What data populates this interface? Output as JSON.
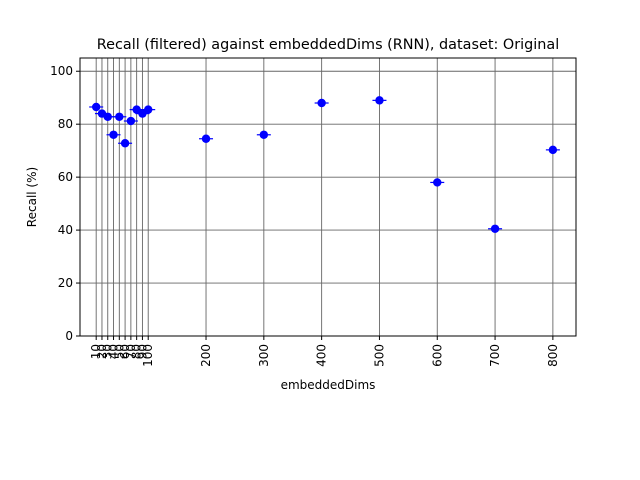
{
  "chart_data": {
    "type": "scatter",
    "title": "Recall (filtered) against embeddedDims (RNN), dataset: Original",
    "xlabel": "embeddedDims",
    "ylabel": "Recall (%)",
    "grid": true,
    "ylim": [
      0,
      105
    ],
    "xlim": [
      -18,
      840
    ],
    "x_ticks": [
      10,
      20,
      30,
      40,
      50,
      60,
      70,
      80,
      90,
      100,
      200,
      300,
      400,
      500,
      600,
      700,
      800
    ],
    "x_tick_labels": [
      "10",
      "20",
      "30",
      "40",
      "50",
      "60",
      "70",
      "80",
      "90",
      "100",
      "200",
      "300",
      "400",
      "500",
      "600",
      "700",
      "800"
    ],
    "y_ticks": [
      0,
      20,
      40,
      60,
      80,
      100
    ],
    "y_tick_labels": [
      "0",
      "20",
      "40",
      "60",
      "80",
      "100"
    ],
    "marker_color": "#0000ff",
    "grid_color": "#666666",
    "points": [
      {
        "x": 10,
        "y": 86.5
      },
      {
        "x": 20,
        "y": 84.0
      },
      {
        "x": 30,
        "y": 82.8
      },
      {
        "x": 40,
        "y": 76.0
      },
      {
        "x": 50,
        "y": 82.8
      },
      {
        "x": 60,
        "y": 72.8
      },
      {
        "x": 70,
        "y": 81.2
      },
      {
        "x": 80,
        "y": 85.5
      },
      {
        "x": 90,
        "y": 84.0
      },
      {
        "x": 100,
        "y": 85.5
      },
      {
        "x": 200,
        "y": 74.5
      },
      {
        "x": 300,
        "y": 76.0
      },
      {
        "x": 400,
        "y": 88.0
      },
      {
        "x": 500,
        "y": 89.0
      },
      {
        "x": 600,
        "y": 58.0
      },
      {
        "x": 700,
        "y": 40.5
      },
      {
        "x": 800,
        "y": 70.3
      }
    ]
  }
}
